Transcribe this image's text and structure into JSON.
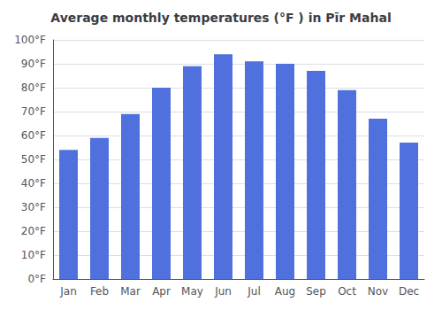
{
  "chart_data": {
    "type": "bar",
    "title": "Average monthly temperatures (°F ) in Pīr Mahal",
    "categories": [
      "Jan",
      "Feb",
      "Mar",
      "Apr",
      "May",
      "Jun",
      "Jul",
      "Aug",
      "Sep",
      "Oct",
      "Nov",
      "Dec"
    ],
    "values": [
      54,
      59,
      69,
      80,
      89,
      94,
      91,
      90,
      87,
      79,
      67,
      57
    ],
    "ylim": [
      0,
      100
    ],
    "yticks": [
      {
        "value": 0,
        "label": "0°F"
      },
      {
        "value": 10,
        "label": "10°F"
      },
      {
        "value": 20,
        "label": "20°F"
      },
      {
        "value": 30,
        "label": "30°F"
      },
      {
        "value": 40,
        "label": "40°F"
      },
      {
        "value": 50,
        "label": "50°F"
      },
      {
        "value": 60,
        "label": "60°F"
      },
      {
        "value": 70,
        "label": "70°F"
      },
      {
        "value": 80,
        "label": "80°F"
      },
      {
        "value": 90,
        "label": "90°F"
      },
      {
        "value": 100,
        "label": "100°F"
      }
    ],
    "grid": true
  }
}
